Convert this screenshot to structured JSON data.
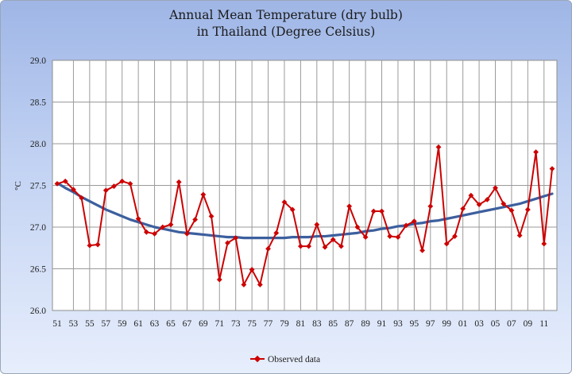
{
  "chart_data": {
    "type": "line",
    "title_line1": "Annual Mean Temperature (dry bulb)",
    "title_line2": "in Thailand (Degree Celsius)",
    "ylabel": "°C",
    "xlabel": "",
    "ylim": [
      26.0,
      29.0
    ],
    "y_ticks": [
      "26.0",
      "26.5",
      "27.0",
      "27.5",
      "28.0",
      "28.5",
      "29.0"
    ],
    "x_ticks": [
      "51",
      "53",
      "55",
      "57",
      "59",
      "61",
      "63",
      "65",
      "67",
      "69",
      "71",
      "73",
      "75",
      "77",
      "79",
      "81",
      "83",
      "85",
      "87",
      "89",
      "91",
      "93",
      "95",
      "97",
      "99",
      "01",
      "03",
      "05",
      "07",
      "09",
      "11"
    ],
    "grid": true,
    "legend_position": "bottom",
    "x": [
      "51",
      "52",
      "53",
      "54",
      "55",
      "56",
      "57",
      "58",
      "59",
      "60",
      "61",
      "62",
      "63",
      "64",
      "65",
      "66",
      "67",
      "68",
      "69",
      "70",
      "71",
      "72",
      "73",
      "74",
      "75",
      "76",
      "77",
      "78",
      "79",
      "80",
      "81",
      "82",
      "83",
      "84",
      "85",
      "86",
      "87",
      "88",
      "89",
      "90",
      "91",
      "92",
      "93",
      "94",
      "95",
      "96",
      "97",
      "98",
      "99",
      "00",
      "01",
      "02",
      "03",
      "04",
      "05",
      "06",
      "07",
      "08",
      "09",
      "10",
      "11",
      "12"
    ],
    "series": [
      {
        "name": "Observed data",
        "color": "#cc0000",
        "values": [
          27.52,
          27.55,
          27.45,
          27.35,
          26.78,
          26.79,
          27.44,
          27.49,
          27.55,
          27.52,
          27.1,
          26.94,
          26.92,
          27.0,
          27.03,
          27.54,
          26.92,
          27.09,
          27.39,
          27.13,
          26.37,
          26.81,
          26.87,
          26.31,
          26.49,
          26.31,
          26.74,
          26.93,
          27.3,
          27.21,
          26.77,
          26.77,
          27.03,
          26.76,
          26.85,
          26.77,
          27.25,
          27.0,
          26.88,
          27.19,
          27.19,
          26.89,
          26.88,
          27.02,
          27.07,
          26.72,
          27.25,
          27.96,
          26.8,
          26.89,
          27.22,
          27.38,
          27.27,
          27.33,
          27.47,
          27.28,
          27.2,
          26.9,
          27.21,
          27.9,
          26.8,
          27.7
        ]
      }
    ],
    "trend": {
      "color": "#3c5f9e",
      "values": [
        27.53,
        27.47,
        27.42,
        27.36,
        27.31,
        27.26,
        27.21,
        27.17,
        27.13,
        27.09,
        27.06,
        27.03,
        27.0,
        26.98,
        26.96,
        26.94,
        26.93,
        26.92,
        26.91,
        26.9,
        26.89,
        26.88,
        26.88,
        26.87,
        26.87,
        26.87,
        26.87,
        26.87,
        26.87,
        26.88,
        26.88,
        26.88,
        26.89,
        26.89,
        26.9,
        26.91,
        26.92,
        26.93,
        26.95,
        26.96,
        26.98,
        26.99,
        27.01,
        27.02,
        27.04,
        27.05,
        27.07,
        27.08,
        27.1,
        27.12,
        27.14,
        27.16,
        27.18,
        27.2,
        27.22,
        27.24,
        27.26,
        27.28,
        27.31,
        27.34,
        27.37,
        27.4
      ]
    }
  }
}
